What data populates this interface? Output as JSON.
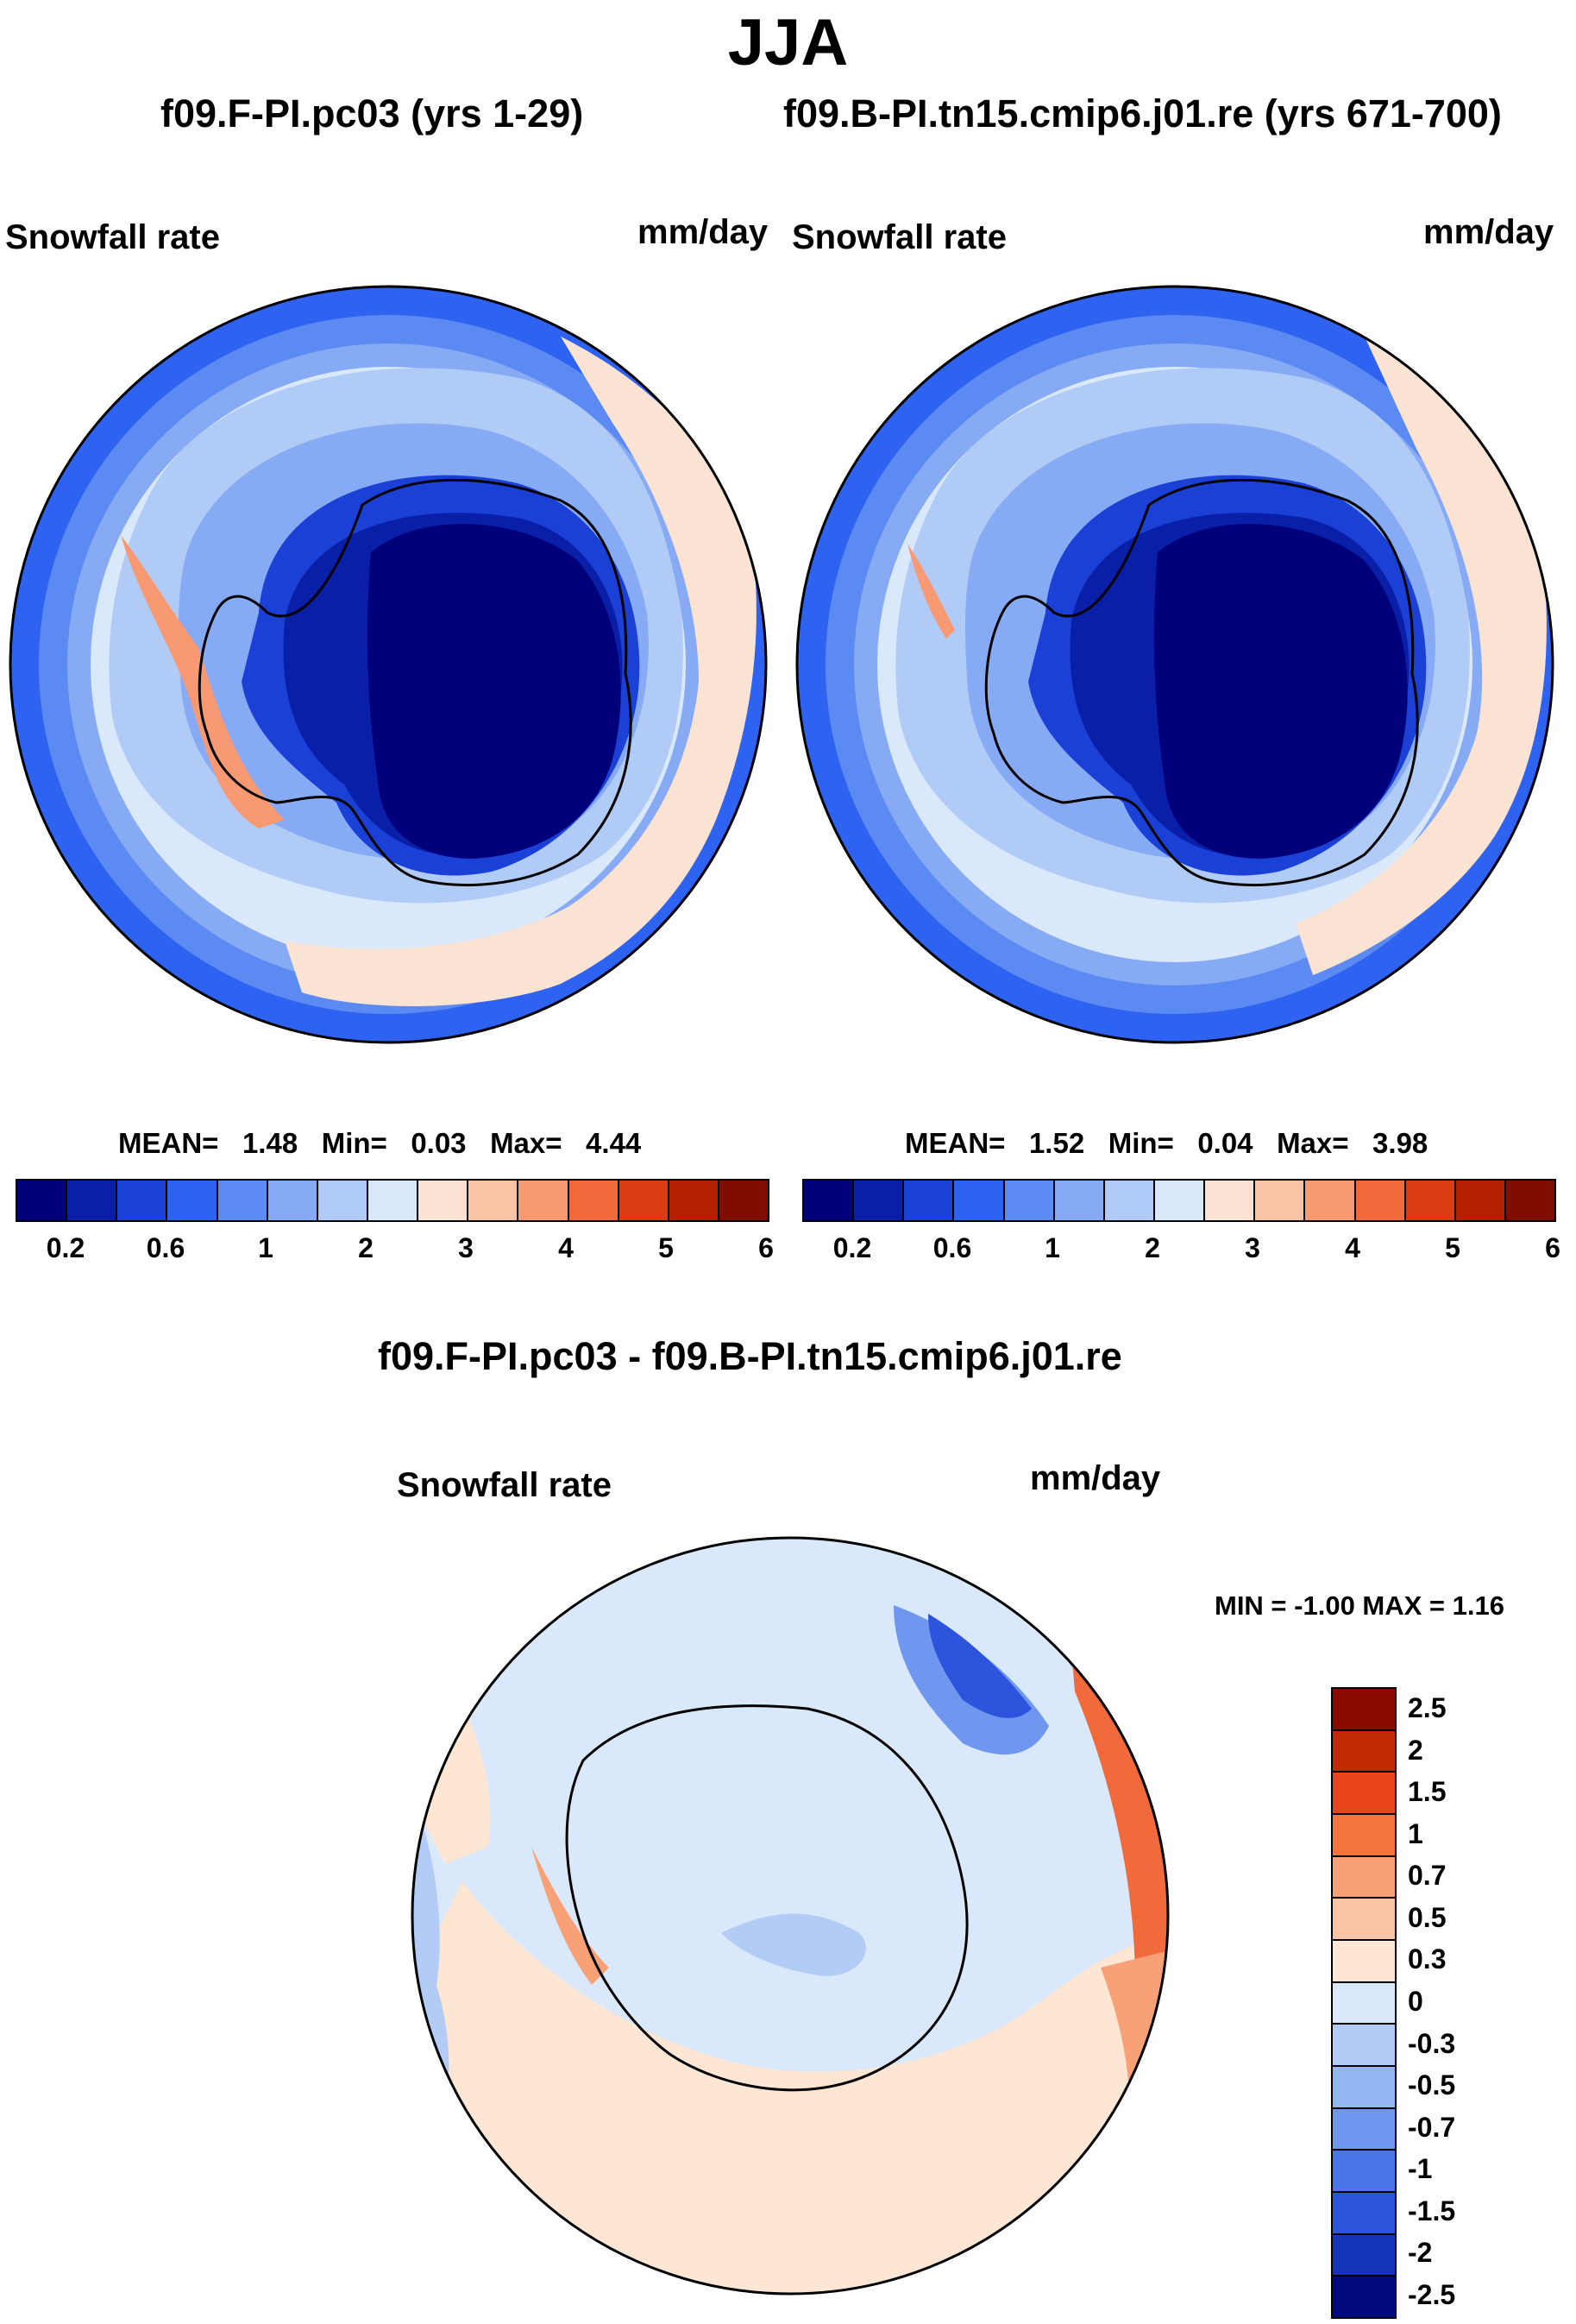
{
  "title": "JJA",
  "panels": [
    {
      "experiment": "f09.F-PI.pc03 (yrs 1-29)",
      "variable": "Snowfall rate",
      "units": "mm/day",
      "stats": {
        "mean_label": "MEAN=",
        "mean": "1.48",
        "min_label": "Min=",
        "min": "0.03",
        "max_label": "Max=",
        "max": "4.44"
      }
    },
    {
      "experiment": "f09.B-PI.tn15.cmip6.j01.re (yrs 671-700)",
      "variable": "Snowfall rate",
      "units": "mm/day",
      "stats": {
        "mean_label": "MEAN=",
        "mean": "1.52",
        "min_label": "Min=",
        "min": "0.04",
        "max_label": "Max=",
        "max": "3.98"
      }
    }
  ],
  "colorbar": {
    "colors": [
      "#00007a",
      "#0a1fa8",
      "#1a40d6",
      "#2e62f0",
      "#5a8af2",
      "#86aaf4",
      "#b1cbf7",
      "#d9e9fb",
      "#fbe3d3",
      "#f9c3a6",
      "#f79a74",
      "#f06a3c",
      "#dc3c14",
      "#b32000",
      "#7f0d00"
    ],
    "tick_labels": [
      "0.2",
      "0.6",
      "1",
      "2",
      "3",
      "4",
      "5",
      "6"
    ]
  },
  "diff_panel": {
    "title": "f09.F-PI.pc03 - f09.B-PI.tn15.cmip6.j01.re",
    "variable": "Snowfall rate",
    "units": "mm/day",
    "minmax": "MIN =  -1.00 MAX =   1.16",
    "colorbar": {
      "colors": [
        "#8b0a00",
        "#c22a06",
        "#e8461a",
        "#f5763d",
        "#f8a176",
        "#fac5a6",
        "#fde6d4",
        "#d9e9fb",
        "#b3ccf6",
        "#93b5f2",
        "#6f97ef",
        "#4a76ea",
        "#2c54dd",
        "#1534b9",
        "#000a7c"
      ],
      "tick_labels": [
        "2.5",
        "2",
        "1.5",
        "1",
        "0.7",
        "0.5",
        "0.3",
        "0",
        "-0.3",
        "-0.5",
        "-0.7",
        "-1",
        "-1.5",
        "-2",
        "-2.5"
      ]
    }
  },
  "map_colors": {
    "ocean_far": "#d9e9fb",
    "ring_outer": "#2e62f0",
    "ring_mid": "#5a8af2",
    "ring_inner": "#86aaf4",
    "belt": "#b1cbf7",
    "coast_high": "#1a40d6",
    "interior": "#00007a",
    "plateau": "#0a1fa8",
    "warm_light": "#fbe3d3",
    "warm_mid": "#f79a74",
    "diff_neutral": "#d9e9fb",
    "diff_pos": "#fde6d4",
    "diff_pos_mid": "#f8a176",
    "diff_pos_strong": "#f06a3c",
    "diff_neg": "#b3ccf6",
    "diff_neg_mid": "#6f97ef",
    "diff_neg_strong": "#2c54dd"
  }
}
